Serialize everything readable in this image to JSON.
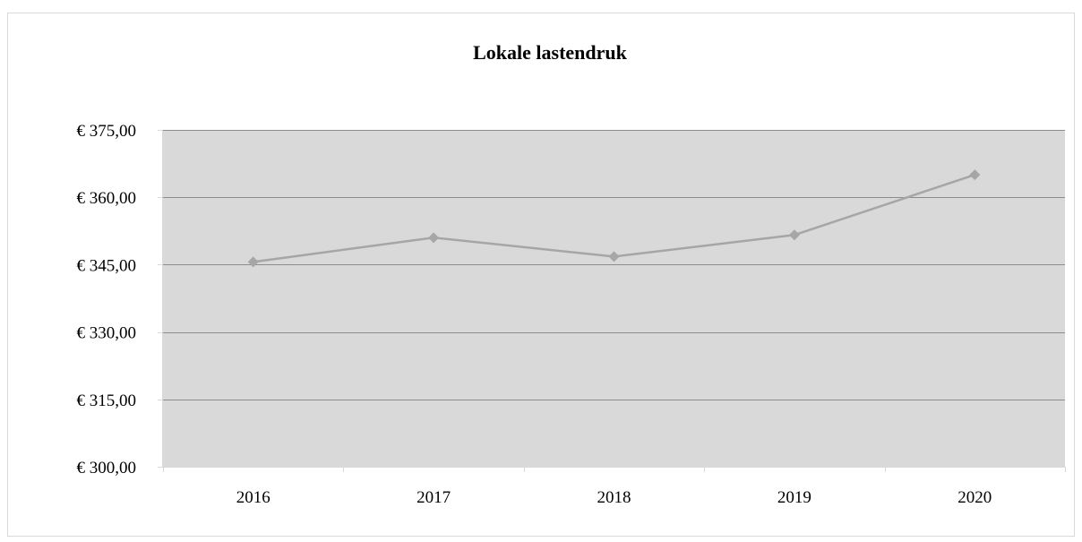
{
  "chart_data": {
    "type": "line",
    "title": "Lokale lastendruk",
    "xlabel": "",
    "ylabel": "",
    "categories": [
      "2016",
      "2017",
      "2018",
      "2019",
      "2020"
    ],
    "series": [
      {
        "values": [
          345.6,
          351.0,
          346.8,
          351.6,
          365.0
        ],
        "color": "#a6a6a6"
      }
    ],
    "ylim": [
      300,
      375
    ],
    "ytick_values": [
      300,
      315,
      330,
      345,
      360,
      375
    ],
    "ytick_labels": [
      "€ 300,00",
      "€ 315,00",
      "€ 330,00",
      "€ 345,00",
      "€ 360,00",
      "€ 375,00"
    ],
    "grid": true,
    "legend": "none",
    "plot_background": "#d9d9d9",
    "gridline_color": "#8c8c8c",
    "axis_color": "#d9d9d9"
  }
}
